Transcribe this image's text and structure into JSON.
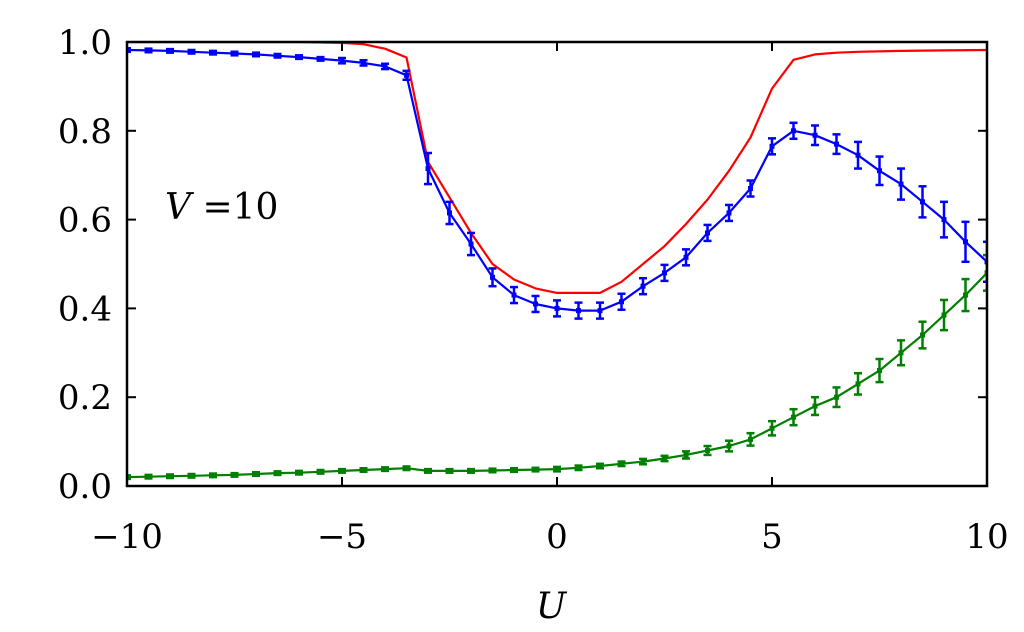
{
  "chart_data": {
    "type": "line",
    "xlabel": "U",
    "ylabel": "",
    "xlim": [
      -10,
      10
    ],
    "ylim": [
      0,
      1
    ],
    "xticks": [
      -10,
      -5,
      0,
      5,
      10
    ],
    "xtick_labels": [
      "−10",
      "−5",
      "0",
      "5",
      "10"
    ],
    "yticks": [
      0.0,
      0.2,
      0.4,
      0.6,
      0.8,
      1.0
    ],
    "ytick_labels": [
      "0.0",
      "0.2",
      "0.4",
      "0.6",
      "0.8",
      "1.0"
    ],
    "grid": false,
    "legend": "none",
    "annotation": {
      "var": "V",
      "text": " =10"
    },
    "series": [
      {
        "color": "#ff0000",
        "style": "line",
        "x": [
          -10,
          -9,
          -8,
          -7,
          -6,
          -5,
          -4.5,
          -4,
          -3.5,
          -3,
          -2.5,
          -2,
          -1.5,
          -1,
          -0.5,
          0,
          0.5,
          1,
          1.5,
          2,
          2.5,
          3,
          3.5,
          4,
          4.5,
          5,
          5.5,
          6,
          6.5,
          7,
          8,
          9,
          10
        ],
        "y": [
          1.0,
          1.0,
          1.0,
          1.0,
          1.0,
          0.998,
          0.995,
          0.985,
          0.965,
          0.73,
          0.65,
          0.57,
          0.5,
          0.465,
          0.445,
          0.435,
          0.435,
          0.435,
          0.46,
          0.5,
          0.54,
          0.59,
          0.645,
          0.71,
          0.785,
          0.895,
          0.96,
          0.972,
          0.976,
          0.978,
          0.98,
          0.981,
          0.982
        ]
      },
      {
        "color": "#0000ff",
        "style": "line-errorbar",
        "x": [
          -10,
          -9.5,
          -9,
          -8.5,
          -8,
          -7.5,
          -7,
          -6.5,
          -6,
          -5.5,
          -5,
          -4.5,
          -4,
          -3.5,
          -3,
          -2.5,
          -2,
          -1.5,
          -1,
          -0.5,
          0,
          0.5,
          1,
          1.5,
          2,
          2.5,
          3,
          3.5,
          4,
          4.5,
          5,
          5.5,
          6,
          6.5,
          7,
          7.5,
          8,
          8.5,
          9,
          9.5,
          10
        ],
        "y": [
          0.982,
          0.981,
          0.98,
          0.978,
          0.976,
          0.974,
          0.972,
          0.969,
          0.966,
          0.962,
          0.958,
          0.953,
          0.945,
          0.925,
          0.715,
          0.615,
          0.545,
          0.47,
          0.43,
          0.41,
          0.4,
          0.395,
          0.395,
          0.415,
          0.45,
          0.48,
          0.515,
          0.57,
          0.615,
          0.67,
          0.765,
          0.8,
          0.79,
          0.77,
          0.745,
          0.71,
          0.68,
          0.64,
          0.6,
          0.55,
          0.505
        ],
        "err": [
          0.004,
          0.004,
          0.004,
          0.004,
          0.004,
          0.004,
          0.004,
          0.004,
          0.004,
          0.004,
          0.006,
          0.006,
          0.006,
          0.01,
          0.035,
          0.025,
          0.025,
          0.02,
          0.018,
          0.018,
          0.018,
          0.018,
          0.018,
          0.018,
          0.018,
          0.018,
          0.018,
          0.018,
          0.018,
          0.018,
          0.018,
          0.018,
          0.022,
          0.022,
          0.03,
          0.032,
          0.035,
          0.035,
          0.04,
          0.045,
          0.045
        ]
      },
      {
        "color": "#007f00",
        "style": "line-errorbar",
        "x": [
          -10,
          -9.5,
          -9,
          -8.5,
          -8,
          -7.5,
          -7,
          -6.5,
          -6,
          -5.5,
          -5,
          -4.5,
          -4,
          -3.5,
          -3,
          -2.5,
          -2,
          -1.5,
          -1,
          -0.5,
          0,
          0.5,
          1,
          1.5,
          2,
          2.5,
          3,
          3.5,
          4,
          4.5,
          5,
          5.5,
          6,
          6.5,
          7,
          7.5,
          8,
          8.5,
          9,
          9.5,
          10
        ],
        "y": [
          0.02,
          0.021,
          0.022,
          0.023,
          0.024,
          0.025,
          0.027,
          0.029,
          0.03,
          0.032,
          0.034,
          0.036,
          0.038,
          0.04,
          0.034,
          0.034,
          0.034,
          0.035,
          0.036,
          0.037,
          0.038,
          0.041,
          0.045,
          0.05,
          0.055,
          0.062,
          0.07,
          0.08,
          0.09,
          0.105,
          0.13,
          0.155,
          0.18,
          0.2,
          0.23,
          0.26,
          0.3,
          0.34,
          0.385,
          0.43,
          0.48
        ],
        "err": [
          0.004,
          0.004,
          0.004,
          0.004,
          0.004,
          0.004,
          0.004,
          0.004,
          0.004,
          0.004,
          0.004,
          0.004,
          0.004,
          0.004,
          0.004,
          0.004,
          0.004,
          0.004,
          0.004,
          0.004,
          0.005,
          0.005,
          0.005,
          0.005,
          0.006,
          0.006,
          0.008,
          0.01,
          0.012,
          0.014,
          0.016,
          0.018,
          0.02,
          0.022,
          0.024,
          0.026,
          0.028,
          0.03,
          0.034,
          0.036,
          0.04
        ]
      }
    ]
  }
}
